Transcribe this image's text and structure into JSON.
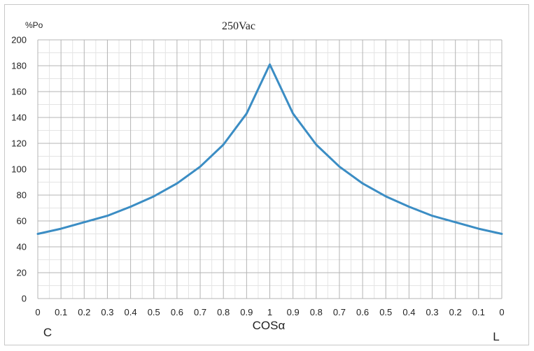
{
  "chart_data": {
    "type": "line",
    "title": "250Vac",
    "ylabel": "%Po",
    "xlabel": "COSα",
    "left_end_label": "C",
    "right_end_label": "L",
    "ylim": [
      0,
      200
    ],
    "y_ticks": [
      0,
      20,
      40,
      60,
      80,
      100,
      120,
      140,
      160,
      180,
      200
    ],
    "x_tick_labels": [
      "0",
      "0.1",
      "0.2",
      "0.3",
      "0.4",
      "0.5",
      "0.6",
      "0.7",
      "0.8",
      "0.9",
      "1",
      "0.9",
      "0.8",
      "0.7",
      "0.6",
      "0.5",
      "0.4",
      "0.3",
      "0.2",
      "0.1",
      "0"
    ],
    "grid": true,
    "series": [
      {
        "values": [
          50,
          54,
          59,
          64,
          71,
          79,
          89,
          102,
          119,
          143,
          181,
          143,
          119,
          102,
          89,
          79,
          71,
          64,
          59,
          54,
          50
        ]
      }
    ],
    "line_color": "#3b8dc4",
    "grid_color": "#b4b4b4"
  }
}
